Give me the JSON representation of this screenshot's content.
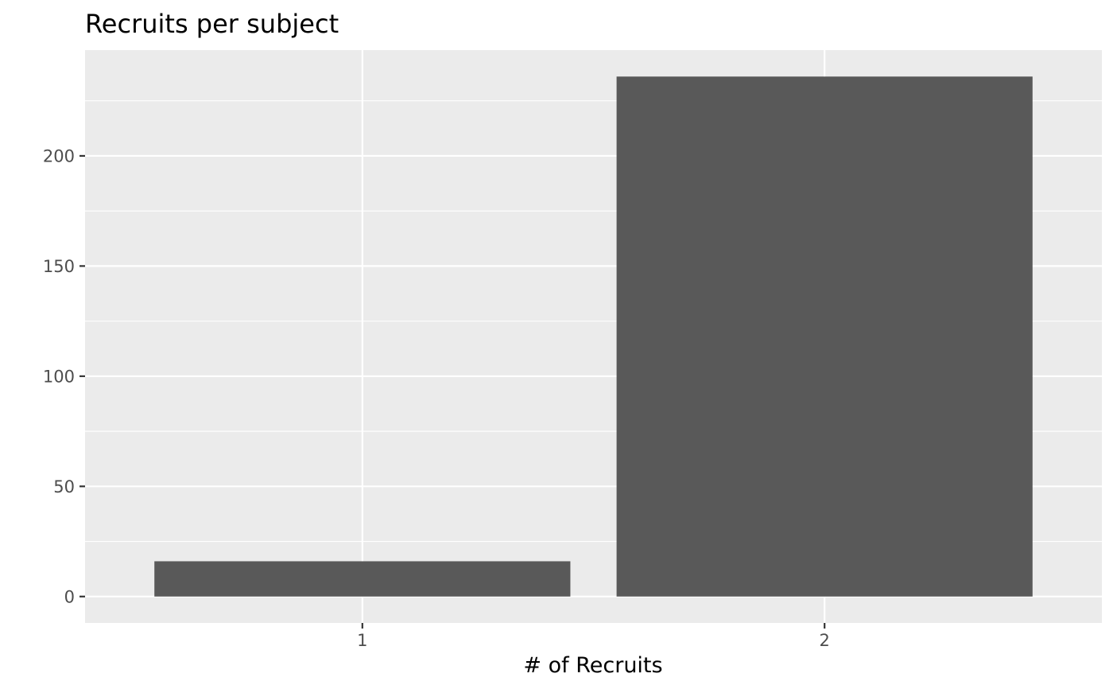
{
  "chart_data": {
    "type": "bar",
    "title": "Recruits per subject",
    "xlabel": "# of Recruits",
    "ylabel": "",
    "categories": [
      "1",
      "2"
    ],
    "values": [
      16,
      236
    ],
    "ylim": [
      -12,
      248
    ],
    "yticks": [
      0,
      50,
      100,
      150,
      200
    ],
    "grid": true,
    "legend": "none",
    "colors": {
      "panel": "#ebebeb",
      "grid": "#ffffff",
      "bar": "#595959",
      "tick": "#333333",
      "tick_label": "#4d4d4d"
    }
  }
}
